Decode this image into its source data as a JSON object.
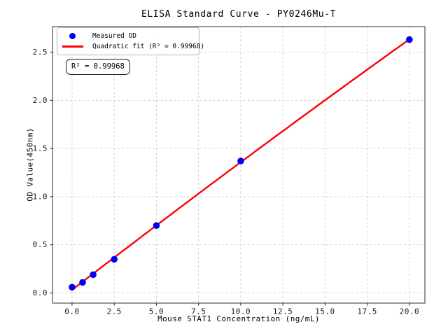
{
  "chart_data": {
    "type": "scatter",
    "title": "ELISA Standard Curve - PY0246Mu-T",
    "xlabel": "Mouse STAT1 Concentration (ng/mL)",
    "ylabel": "OD Value(450nm)",
    "x": [
      0,
      0.625,
      1.25,
      2.5,
      5,
      10,
      20
    ],
    "y": [
      0.06,
      0.11,
      0.19,
      0.35,
      0.7,
      1.37,
      2.63
    ],
    "series": [
      {
        "name": "Measured OD",
        "type": "scatter",
        "marker": "circle",
        "color": "#0000ee"
      },
      {
        "name": "Quadratic fit (R² = 0.99968)",
        "type": "line",
        "fit": "quadratic",
        "fit_x_range": [
          0,
          20
        ],
        "color": "#ff0000"
      }
    ],
    "r_squared": "0.99968",
    "annotation": "R² = 0.99968",
    "xticks": [
      0,
      2.5,
      5,
      7.5,
      10,
      12.5,
      15,
      17.5,
      20
    ],
    "xtick_labels": [
      "0.0",
      "2.5",
      "5.0",
      "7.5",
      "10.0",
      "12.5",
      "15.0",
      "17.5",
      "20.0"
    ],
    "yticks": [
      0,
      0.5,
      1,
      1.5,
      2,
      2.5
    ],
    "ytick_labels": [
      "0.0",
      "0.5",
      "1.0",
      "1.5",
      "2.0",
      "2.5"
    ],
    "xlim": [
      -1.16,
      20.92
    ],
    "ylim": [
      -0.105,
      2.765
    ],
    "grid": true,
    "grid_style": "dashed",
    "legend_position": "upper-left",
    "colors": {
      "marker": "#0000ee",
      "fit_line": "#ff0000",
      "grid": "#cccccc",
      "spine": "#2b2b2b",
      "text": "#1a1a1a",
      "background": "#ffffff"
    }
  }
}
